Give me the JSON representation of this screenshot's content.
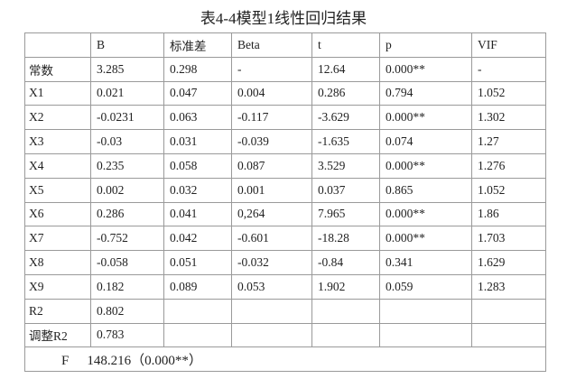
{
  "title": "表4-4模型1线性回归结果",
  "table": {
    "header": [
      "B",
      "标准差",
      "Beta",
      "t",
      "p",
      "VIF"
    ],
    "rows": [
      {
        "label": "常数",
        "cells": [
          "3.285",
          "0.298",
          "-",
          "12.64",
          "0.000**",
          "-"
        ]
      },
      {
        "label": "X1",
        "cells": [
          "0.021",
          "0.047",
          "0.004",
          "0.286",
          "0.794",
          "1.052"
        ]
      },
      {
        "label": "X2",
        "cells": [
          "-0.0231",
          "0.063",
          "-0.117",
          "-3.629",
          "0.000**",
          "1.302"
        ]
      },
      {
        "label": "X3",
        "cells": [
          "-0.03",
          "0.031",
          "-0.039",
          "-1.635",
          "0.074",
          "1.27"
        ]
      },
      {
        "label": "X4",
        "cells": [
          "0.235",
          "0.058",
          "0.087",
          "3.529",
          "0.000**",
          "1.276"
        ]
      },
      {
        "label": "X5",
        "cells": [
          "0.002",
          "0.032",
          "0.001",
          "0.037",
          "0.865",
          "1.052"
        ]
      },
      {
        "label": "X6",
        "cells": [
          "0.286",
          "0.041",
          "0,264",
          "7.965",
          "0.000**",
          "1.86"
        ]
      },
      {
        "label": "X7",
        "cells": [
          "-0.752",
          "0.042",
          "-0.601",
          "-18.28",
          "0.000**",
          "1.703"
        ]
      },
      {
        "label": "X8",
        "cells": [
          "-0.058",
          "0.051",
          "-0.032",
          "-0.84",
          "0.341",
          "1.629"
        ]
      },
      {
        "label": "X9",
        "cells": [
          "0.182",
          "0.089",
          "0.053",
          "1.902",
          "0.059",
          "1.283"
        ]
      },
      {
        "label": "R2",
        "cells": [
          "0.802"
        ]
      },
      {
        "label": "调整R2",
        "cells": [
          "0.783"
        ]
      }
    ],
    "footer": {
      "label": "F",
      "value": "148.216（0.000**）"
    }
  }
}
